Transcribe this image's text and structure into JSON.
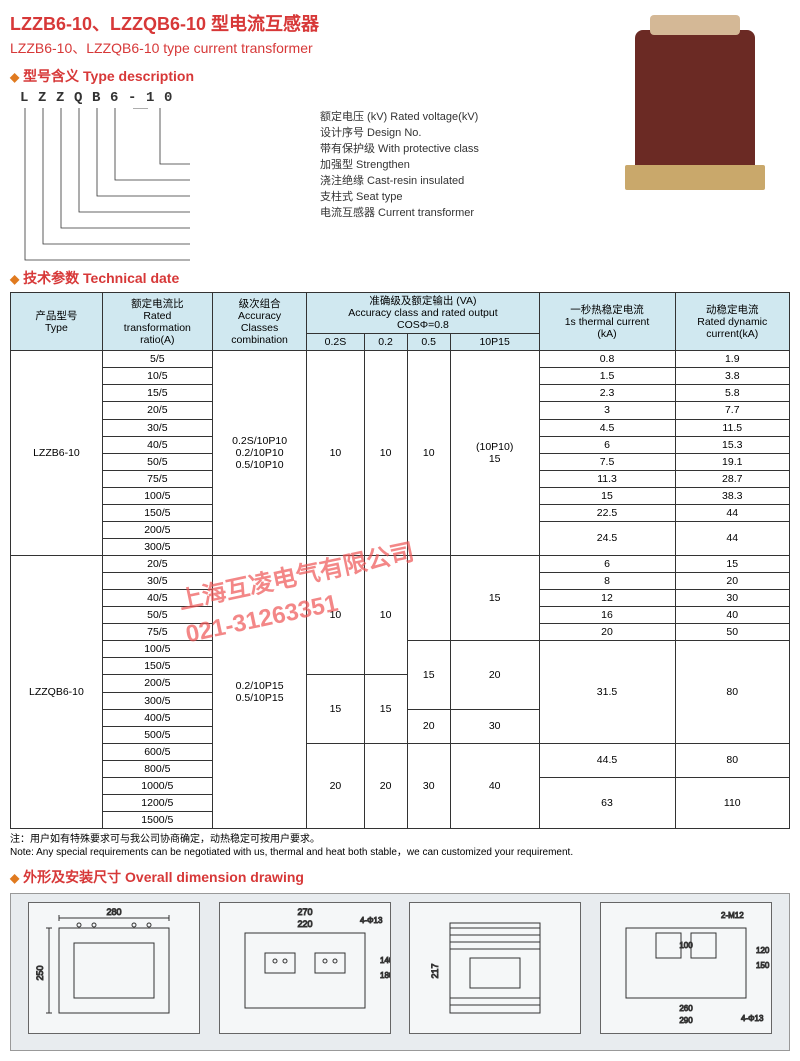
{
  "title": {
    "cn": "LZZB6-10、LZZQB6-10  型电流互感器",
    "en": "LZZB6-10、LZZQB6-10  type current transformer"
  },
  "sections": {
    "type_desc": "型号含义 Type description",
    "tech": "技术参数 Technical date",
    "dim": "外形及安装尺寸 Overall dimension drawing"
  },
  "type_code": [
    "L",
    "Z",
    "Z",
    "Q",
    "B",
    "6",
    "-",
    "1",
    "0"
  ],
  "type_lines": [
    "额定电压 (kV)  Rated voltage(kV)",
    "设计序号  Design No.",
    "带有保护级  With protective class",
    "加强型  Strengthen",
    "浇注绝缘  Cast-resin insulated",
    "支柱式  Seat type",
    "电流互感器  Current transformer"
  ],
  "table": {
    "headers": {
      "type": "产品型号\nType",
      "ratio": "额定电流比\nRated\ntransformation\nratio(A)",
      "accu": "级次组合\nAccuracy\nClasses\ncombination",
      "acc_out": "准确级及额定输出 (VA)\nAccuracy class and rated output\nCOSΦ=0.8",
      "sub_02s": "0.2S",
      "sub_02": "0.2",
      "sub_05": "0.5",
      "sub_10p15": "10P15",
      "thermal": "一秒热稳定电流\n1s thermal current\n(kA)",
      "dynamic": "动稳定电流\nRated dynamic\ncurrent(kA)"
    },
    "group1": {
      "type": "LZZB6-10",
      "accu": "0.2S/10P10\n0.2/10P10\n0.5/10P10",
      "va": [
        "10",
        "10",
        "10",
        "(10P10)\n15"
      ],
      "rows": [
        {
          "r": "5/5",
          "t": "0.8",
          "d": "1.9"
        },
        {
          "r": "10/5",
          "t": "1.5",
          "d": "3.8"
        },
        {
          "r": "15/5",
          "t": "2.3",
          "d": "5.8"
        },
        {
          "r": "20/5",
          "t": "3",
          "d": "7.7"
        },
        {
          "r": "30/5",
          "t": "4.5",
          "d": "11.5"
        },
        {
          "r": "40/5",
          "t": "6",
          "d": "15.3"
        },
        {
          "r": "50/5",
          "t": "7.5",
          "d": "19.1"
        },
        {
          "r": "75/5",
          "t": "11.3",
          "d": "28.7"
        },
        {
          "r": "100/5",
          "t": "15",
          "d": "38.3"
        },
        {
          "r": "150/5",
          "t": "22.5",
          "d": "44"
        },
        {
          "r": "200/5",
          "t": "24.5",
          "d": "44",
          "span": 2
        },
        {
          "r": "300/5"
        }
      ]
    },
    "group2": {
      "type": "LZZQB6-10",
      "accu": "0.2/10P15\n0.5/10P15",
      "rows": [
        {
          "r": "20/5",
          "t": "6",
          "d": "15"
        },
        {
          "r": "30/5",
          "t": "8",
          "d": "20"
        },
        {
          "r": "40/5",
          "t": "12",
          "d": "30"
        },
        {
          "r": "50/5",
          "t": "16",
          "d": "40"
        },
        {
          "r": "75/5",
          "t": "20",
          "d": "50"
        },
        {
          "r": "100/5"
        },
        {
          "r": "150/5"
        },
        {
          "r": "200/5"
        },
        {
          "r": "300/5"
        },
        {
          "r": "400/5"
        },
        {
          "r": "500/5"
        },
        {
          "r": "600/5"
        },
        {
          "r": "800/5"
        },
        {
          "r": "1000/5"
        },
        {
          "r": "1200/5"
        },
        {
          "r": "1500/5"
        }
      ],
      "va_blocks": [
        {
          "c1": "10",
          "c2": "10",
          "c3": "",
          "c4": "15",
          "r1": 5
        },
        {
          "c1": "",
          "c2": "",
          "c3": "15",
          "c4": "20",
          "r1": 4,
          "t": "31.5",
          "d": "80"
        },
        {
          "c1": "15",
          "c2": "15",
          "c3": "20",
          "c4": "30",
          "r1": 2
        },
        {
          "c1": "",
          "c2": "",
          "c3": "",
          "c4": "",
          "r1": 2,
          "t": "44.5",
          "d": "80"
        },
        {
          "c1": "20",
          "c2": "20",
          "c3": "30",
          "c4": "40",
          "r1": 3,
          "t": "63",
          "d": "110"
        }
      ]
    }
  },
  "note": {
    "cn": "注：用户如有特殊要求可与我公司协商确定，动热稳定可按用户要求。",
    "en": "Note: Any special requirements can be negotiated with us, thermal and heat both stable，we can customized your requirement."
  },
  "dimensions": {
    "d1": [
      "280",
      "250"
    ],
    "d2": [
      "270",
      "220",
      "140",
      "180",
      "4-Φ13"
    ],
    "d3": [
      "217"
    ],
    "d4": [
      "100",
      "120",
      "150",
      "260",
      "290",
      "2-M12",
      "4-Φ13"
    ]
  },
  "watermark": {
    "line1": "上海互凌电气有限公司",
    "line2": "021-31263351"
  },
  "colors": {
    "accent": "#d73838",
    "diamond": "#e07a1f",
    "header_bg": "#d0e8f0",
    "dim_bg": "#e8ecef",
    "watermark": "#e55",
    "product": "#6b2a24"
  }
}
